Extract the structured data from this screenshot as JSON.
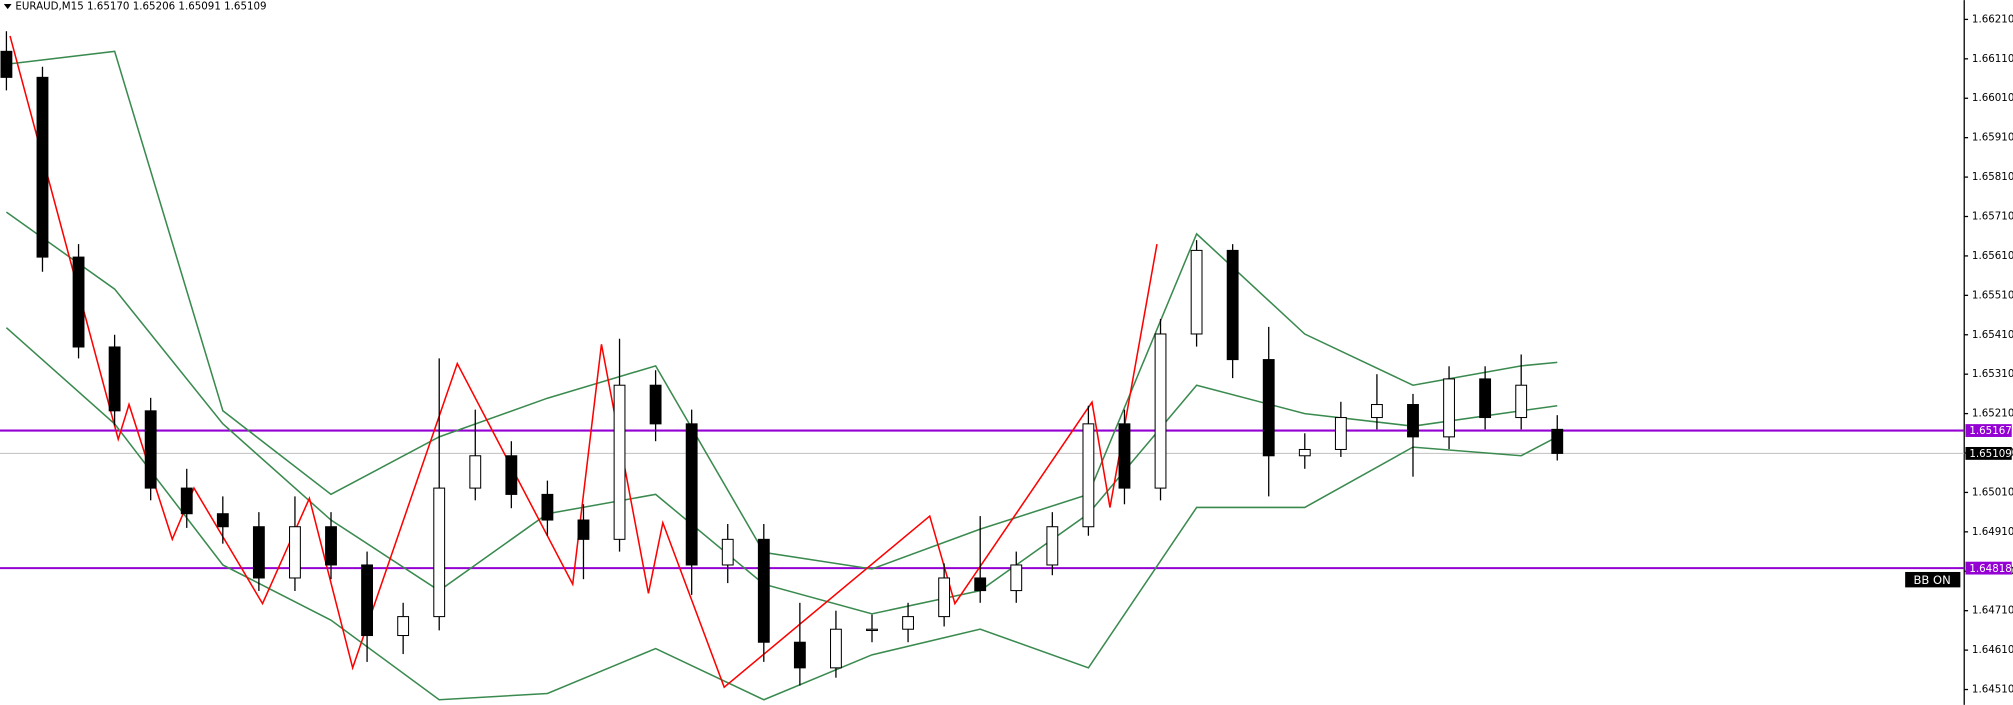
{
  "chart_data": {
    "type": "candlestick",
    "title": "EURAUD,M15  1.65170 1.65206 1.65091 1.65109",
    "open": [
      1.66129,
      1.66063,
      1.65607,
      1.65379,
      1.65217,
      1.65021,
      1.64956,
      1.64923,
      1.64793,
      1.64923,
      1.64826,
      1.64647,
      1.64695,
      1.65021,
      1.65103,
      1.65005,
      1.6494,
      1.64891,
      1.65282,
      1.65184,
      1.64826,
      1.64891,
      1.6463,
      1.64565,
      1.64663,
      1.64663,
      1.64695,
      1.64793,
      1.64761,
      1.64826,
      1.64923,
      1.65184,
      1.65021,
      1.65412,
      1.65624,
      1.65347,
      1.65103,
      1.65119,
      1.652,
      1.65233,
      1.65151,
      1.65298,
      1.652,
      1.6517
    ],
    "high": [
      1.6618,
      1.6609,
      1.6564,
      1.6541,
      1.6525,
      1.6507,
      1.65,
      1.6496,
      1.65,
      1.6496,
      1.6486,
      1.6473,
      1.6535,
      1.6522,
      1.6514,
      1.6504,
      1.6498,
      1.654,
      1.6532,
      1.6522,
      1.6493,
      1.6493,
      1.6473,
      1.6471,
      1.647,
      1.6473,
      1.6483,
      1.6495,
      1.6486,
      1.6496,
      1.6523,
      1.6522,
      1.6545,
      1.6565,
      1.6564,
      1.6543,
      1.6516,
      1.6524,
      1.6531,
      1.6526,
      1.6533,
      1.6533,
      1.6536,
      1.65206
    ],
    "low": [
      1.6603,
      1.6557,
      1.6535,
      1.6518,
      1.6499,
      1.6492,
      1.6488,
      1.6476,
      1.6476,
      1.6479,
      1.6458,
      1.646,
      1.6466,
      1.6499,
      1.6497,
      1.649,
      1.6479,
      1.6486,
      1.6514,
      1.6475,
      1.6478,
      1.6458,
      1.6452,
      1.6454,
      1.6463,
      1.6463,
      1.6467,
      1.6473,
      1.6473,
      1.648,
      1.649,
      1.6498,
      1.6499,
      1.6538,
      1.653,
      1.65,
      1.6507,
      1.651,
      1.6517,
      1.6505,
      1.6512,
      1.6517,
      1.6517,
      1.65091
    ],
    "close": [
      1.66063,
      1.65607,
      1.65379,
      1.65217,
      1.65021,
      1.64956,
      1.64923,
      1.64793,
      1.64923,
      1.64826,
      1.64647,
      1.64695,
      1.65021,
      1.65103,
      1.65005,
      1.6494,
      1.64891,
      1.65282,
      1.65184,
      1.64826,
      1.64891,
      1.6463,
      1.64565,
      1.64663,
      1.64663,
      1.64695,
      1.64793,
      1.64761,
      1.64826,
      1.64923,
      1.65184,
      1.65021,
      1.65412,
      1.65624,
      1.65347,
      1.65103,
      1.65119,
      1.652,
      1.65233,
      1.65151,
      1.65298,
      1.652,
      1.65282,
      1.65109
    ],
    "up_color": "#ffffff",
    "down_color": "#000000",
    "series": [
      {
        "color": "#3a8a4f",
        "x": [
          0,
          3,
          6,
          9,
          12,
          15,
          18,
          21,
          24,
          27,
          30,
          33,
          36,
          39,
          42,
          43
        ],
        "values": [
          1.66096,
          1.66129,
          1.65217,
          1.65005,
          1.65151,
          1.65249,
          1.65331,
          1.64858,
          1.64816,
          1.64917,
          1.65005,
          1.65666,
          1.65412,
          1.65282,
          1.65331,
          1.6534
        ]
      },
      {
        "color": "#3a8a4f",
        "x": [
          0,
          3,
          6,
          9,
          12,
          15,
          18,
          21,
          24,
          27,
          30,
          33,
          36,
          39,
          42,
          43
        ],
        "values": [
          1.65721,
          1.65526,
          1.65184,
          1.6494,
          1.64761,
          1.64956,
          1.65005,
          1.64777,
          1.64702,
          1.64761,
          1.64956,
          1.65282,
          1.6521,
          1.65178,
          1.65217,
          1.6523
        ]
      },
      {
        "color": "#3a8a4f",
        "x": [
          0,
          3,
          6,
          9,
          12,
          15,
          18,
          21,
          24,
          27,
          30,
          33,
          36,
          39,
          42,
          43
        ],
        "values": [
          1.65428,
          1.65184,
          1.64826,
          1.64686,
          1.64484,
          1.645,
          1.64614,
          1.64484,
          1.64598,
          1.64663,
          1.64565,
          1.64972,
          1.64972,
          1.65125,
          1.65103,
          1.65151
        ]
      },
      {
        "color": "#ff0000",
        "x": [
          0.1,
          3.1,
          3.4,
          4.6,
          5.2,
          7.1,
          8.4,
          9.6,
          12.5,
          15.7,
          16.5,
          17.8,
          18.2,
          19.9,
          25.6,
          26.3,
          30.1,
          30.6,
          31.9
        ],
        "values": [
          1.66168,
          1.65145,
          1.65233,
          1.64891,
          1.65021,
          1.64728,
          1.64995,
          1.64565,
          1.65337,
          1.64777,
          1.65386,
          1.64754,
          1.64933,
          1.64516,
          1.6495,
          1.64728,
          1.65239,
          1.64972,
          1.6564
        ]
      }
    ],
    "hlines": [
      {
        "value": 1.65167,
        "color": "#9400d3"
      },
      {
        "value": 1.64818,
        "color": "#9400d3"
      },
      {
        "value": 1.65109,
        "color": "#c0c0c0",
        "tag_color": "#000000"
      }
    ],
    "annotation": "BB ON",
    "ylim": [
      1.64471,
      1.66259
    ],
    "yticks": [
      {
        "value": 1.6621,
        "label": "1.66210"
      },
      {
        "value": 1.6611,
        "label": "1.66110"
      },
      {
        "value": 1.6601,
        "label": "1.66010"
      },
      {
        "value": 1.6591,
        "label": "1.65910"
      },
      {
        "value": 1.6581,
        "label": "1.65810"
      },
      {
        "value": 1.6571,
        "label": "1.65710"
      },
      {
        "value": 1.6561,
        "label": "1.65610"
      },
      {
        "value": 1.6551,
        "label": "1.65510"
      },
      {
        "value": 1.6541,
        "label": "1.65410"
      },
      {
        "value": 1.6531,
        "label": "1.65310"
      },
      {
        "value": 1.6521,
        "label": "1.65210"
      },
      {
        "value": 1.6511,
        "label": "1.65110"
      },
      {
        "value": 1.6501,
        "label": "1.65010"
      },
      {
        "value": 1.6491,
        "label": "1.64910"
      },
      {
        "value": 1.6481,
        "label": "1.64810"
      },
      {
        "value": 1.6471,
        "label": "1.64710"
      },
      {
        "value": 1.6461,
        "label": "1.64610"
      },
      {
        "value": 1.6451,
        "label": "1.64510"
      }
    ]
  }
}
